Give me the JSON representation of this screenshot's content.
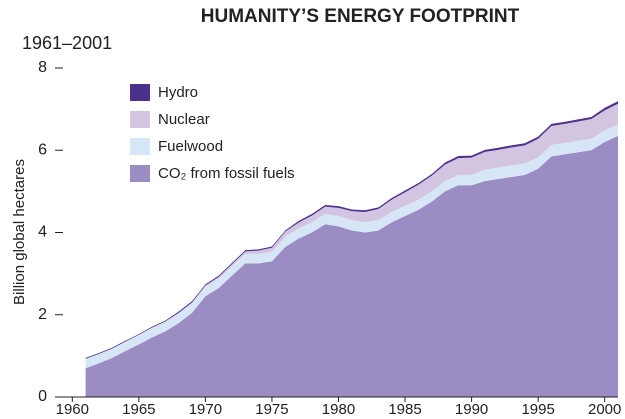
{
  "chart_data": {
    "type": "stacked_area",
    "title": "HUMANITY’S ENERGY FOOTPRINT",
    "subtitle": "1961–2001",
    "y_label": "Billion global hectares",
    "x": [
      1961,
      1962,
      1963,
      1964,
      1965,
      1966,
      1967,
      1968,
      1969,
      1970,
      1971,
      1972,
      1973,
      1974,
      1975,
      1976,
      1977,
      1978,
      1979,
      1980,
      1981,
      1982,
      1983,
      1984,
      1985,
      1986,
      1987,
      1988,
      1989,
      1990,
      1991,
      1992,
      1993,
      1994,
      1995,
      1996,
      1997,
      1998,
      1999,
      2000,
      2001
    ],
    "series": [
      {
        "name": "CO₂ from fossil fuels",
        "color": "#9c8cc4",
        "values": [
          0.7,
          0.82,
          0.95,
          1.12,
          1.28,
          1.45,
          1.6,
          1.8,
          2.05,
          2.45,
          2.65,
          2.95,
          3.25,
          3.25,
          3.3,
          3.65,
          3.85,
          4.0,
          4.2,
          4.15,
          4.05,
          4.0,
          4.05,
          4.25,
          4.4,
          4.55,
          4.75,
          5.0,
          5.15,
          5.15,
          5.25,
          5.3,
          5.35,
          5.4,
          5.55,
          5.85,
          5.9,
          5.95,
          6.0,
          6.2,
          6.35
        ]
      },
      {
        "name": "Fuelwood",
        "color": "#d6e6f6",
        "values": [
          0.23,
          0.23,
          0.23,
          0.23,
          0.23,
          0.23,
          0.23,
          0.23,
          0.23,
          0.23,
          0.23,
          0.23,
          0.23,
          0.23,
          0.23,
          0.25,
          0.25,
          0.25,
          0.25,
          0.25,
          0.25,
          0.25,
          0.25,
          0.25,
          0.25,
          0.25,
          0.25,
          0.25,
          0.25,
          0.25,
          0.28,
          0.28,
          0.28,
          0.28,
          0.28,
          0.28,
          0.28,
          0.28,
          0.28,
          0.28,
          0.28
        ]
      },
      {
        "name": "Nuclear",
        "color": "#d3c4e2",
        "values": [
          0,
          0,
          0,
          0,
          0,
          0.01,
          0.01,
          0.02,
          0.02,
          0.03,
          0.04,
          0.05,
          0.06,
          0.08,
          0.1,
          0.12,
          0.14,
          0.16,
          0.18,
          0.2,
          0.22,
          0.25,
          0.27,
          0.3,
          0.33,
          0.36,
          0.38,
          0.4,
          0.41,
          0.42,
          0.43,
          0.43,
          0.44,
          0.44,
          0.45,
          0.46,
          0.46,
          0.47,
          0.48,
          0.49,
          0.5
        ]
      },
      {
        "name": "Hydro",
        "color": "#4b318c",
        "values": [
          0.02,
          0.02,
          0.02,
          0.02,
          0.02,
          0.02,
          0.02,
          0.03,
          0.03,
          0.03,
          0.03,
          0.03,
          0.03,
          0.03,
          0.03,
          0.03,
          0.04,
          0.04,
          0.04,
          0.04,
          0.04,
          0.04,
          0.04,
          0.04,
          0.04,
          0.04,
          0.04,
          0.05,
          0.05,
          0.05,
          0.05,
          0.05,
          0.05,
          0.05,
          0.05,
          0.05,
          0.05,
          0.05,
          0.05,
          0.06,
          0.06
        ]
      }
    ],
    "xlim": [
      1958.7,
      2001
    ],
    "xticks": [
      1960,
      1965,
      1970,
      1975,
      1980,
      1985,
      1990,
      1995,
      2000
    ],
    "ylim": [
      0,
      8
    ],
    "yticks": [
      0,
      2,
      4,
      6,
      8
    ],
    "legend": "upper left"
  }
}
